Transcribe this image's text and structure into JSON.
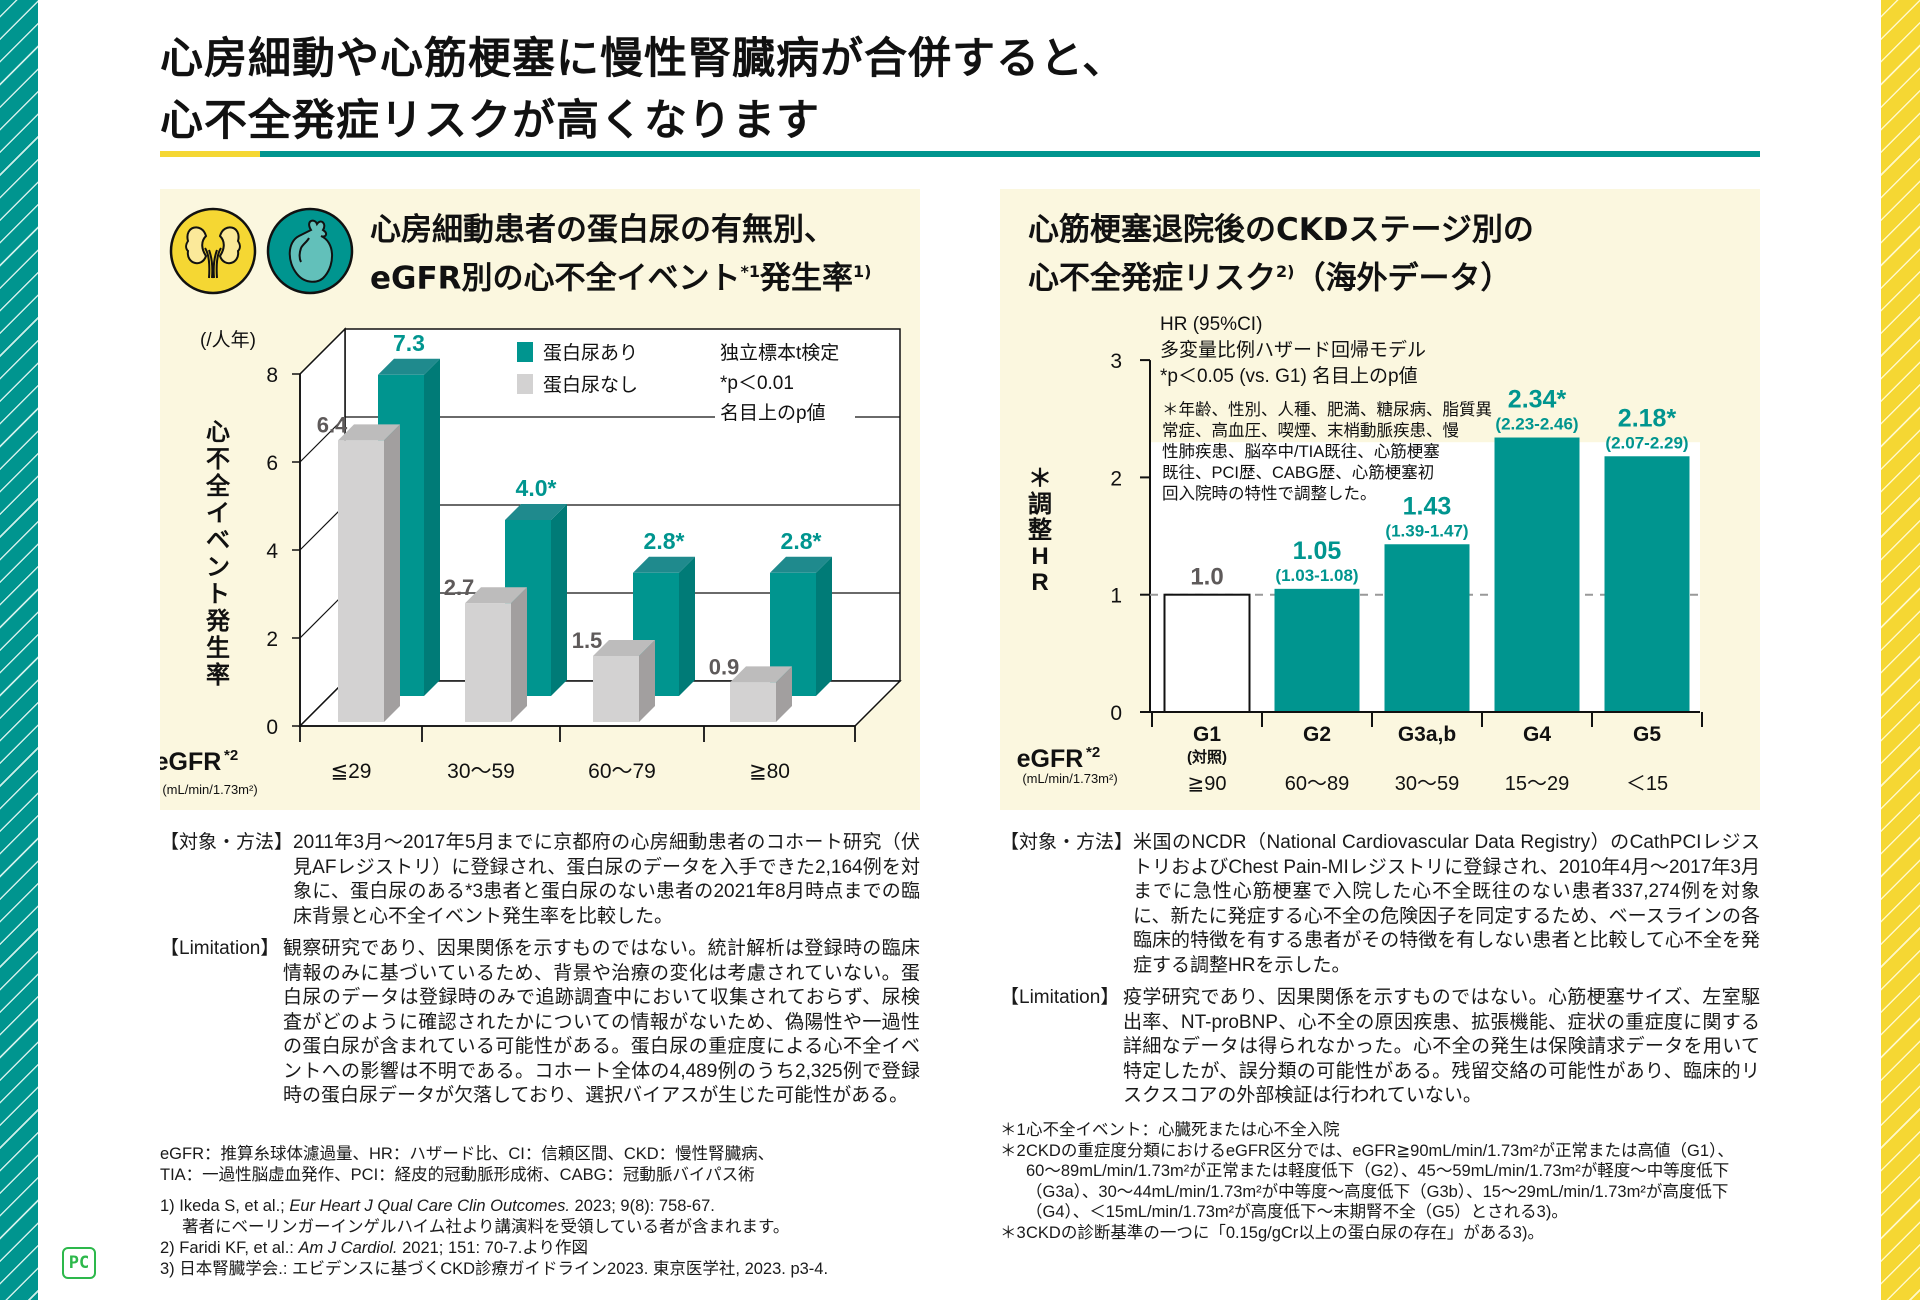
{
  "page": {
    "title_lines": [
      "心房細動や心筋梗塞に慢性腎臓病が合併すると、",
      "心不全発症リスクが高くなります"
    ],
    "colors": {
      "teal": "#00958f",
      "yellow": "#f5d733",
      "panel_bg": "#fbf7df",
      "gray_bar": "#d3d2d2",
      "gray_label": "#5e5a5a"
    }
  },
  "left_panel": {
    "icons": [
      "kidney-icon",
      "heart-icon"
    ],
    "heading_line1": "心房細動患者の蛋白尿の有無別、",
    "heading_line2_a": "eGFR別の心不全イベント",
    "heading_line2_sup1": "*1",
    "heading_line2_b": "発生率",
    "heading_line2_sup2": "1)",
    "unit_label": "(/人年)",
    "y_axis_title": "心不全イベント発生率",
    "x_axis_title": "eGFR",
    "x_axis_title_sup": "*2",
    "x_axis_unit": "(mL/min/1.73m²)",
    "legend": [
      {
        "label": "蛋白尿あり",
        "color": "#00958f"
      },
      {
        "label": "蛋白尿なし",
        "color": "#d3d2d2"
      }
    ],
    "test_note": [
      "独立標本t検定",
      "*p＜0.01",
      "名目上のp値"
    ]
  },
  "right_panel": {
    "heading_line1": "心筋梗塞退院後のCKDステージ別の",
    "heading_line2_a": "心不全発症リスク",
    "heading_line2_sup": "2)",
    "heading_line2_b": "（海外データ）",
    "model_notes": [
      "HR (95%CI)",
      "多変量比例ハザード回帰モデル",
      "*p＜0.05 (vs. G1) 名目上のp値"
    ],
    "adjust_note_lines": [
      "＊年齢、性別、人種、肥満、糖尿病、脂質異",
      "常症、高血圧、喫煙、末梢動脈疾患、慢",
      "性肺疾患、脳卒中/TIA既往、心筋梗塞",
      "既往、PCI歴、CABG歴、心筋梗塞初",
      "回入院時の特性で調整した。"
    ],
    "y_axis_title": [
      "＊",
      "調",
      "整",
      "H",
      "R"
    ],
    "x_axis_title": "eGFR",
    "x_axis_title_sup": "*2",
    "x_axis_unit": "(mL/min/1.73m²)",
    "control_label": "(対照)"
  },
  "chart_data": [
    {
      "type": "bar",
      "style": "3d-grouped",
      "title": "心房細動患者の蛋白尿の有無別、eGFR別の心不全イベント発生率",
      "xlabel": "eGFR (mL/min/1.73m²)",
      "ylabel": "心不全イベント発生率 (/人年)",
      "categories": [
        "≦29",
        "30〜59",
        "60〜79",
        "≧80"
      ],
      "series": [
        {
          "name": "蛋白尿なし",
          "values": [
            6.4,
            2.7,
            1.5,
            0.9
          ],
          "labels": [
            "6.4",
            "2.7",
            "1.5",
            "0.9"
          ],
          "color": "#d3d2d2"
        },
        {
          "name": "蛋白尿あり",
          "values": [
            7.3,
            4.0,
            2.8,
            2.8
          ],
          "labels": [
            "7.3",
            "4.0*",
            "2.8*",
            "2.8*"
          ],
          "color": "#00958f"
        }
      ],
      "yticks": [
        0,
        2,
        4,
        6,
        8
      ],
      "ylim": [
        0,
        8
      ],
      "grid": true,
      "legend": "top-right"
    },
    {
      "type": "bar",
      "title": "心筋梗塞退院後のCKDステージ別の心不全発症リスク（海外データ）",
      "xlabel": "eGFR (mL/min/1.73m²)",
      "ylabel": "＊調整HR",
      "categories": [
        "G1",
        "G2",
        "G3a,b",
        "G4",
        "G5"
      ],
      "egfr_ranges": [
        "≧90",
        "60〜89",
        "30〜59",
        "15〜29",
        "＜15"
      ],
      "values": [
        1.0,
        1.05,
        1.43,
        2.34,
        2.18
      ],
      "value_labels": [
        "1.0",
        "1.05",
        "1.43",
        "2.34*",
        "2.18*"
      ],
      "ci_labels": [
        "",
        "(1.03-1.08)",
        "(1.39-1.47)",
        "(2.23-2.46)",
        "(2.07-2.29)"
      ],
      "reference_line": 1,
      "yticks": [
        0,
        1,
        2,
        3
      ],
      "ylim": [
        0,
        3
      ],
      "grid": false
    }
  ],
  "left_text": {
    "methods_label": "【対象・方法】",
    "methods_body": "2011年3月〜2017年5月までに京都府の心房細動患者のコホート研究（伏見AFレジストリ）に登録され、蛋白尿のデータを入手できた2,164例を対象に、蛋白尿のある*3患者と蛋白尿のない患者の2021年8月時点までの臨床背景と心不全イベント発生率を比較した。",
    "limitation_label": "【Limitation】",
    "limitation_body": "観察研究であり、因果関係を示すものではない。統計解析は登録時の臨床情報のみに基づいているため、背景や治療の変化は考慮されていない。蛋白尿のデータは登録時のみで追跡調査中において収集されておらず、尿検査がどのように確認されたかについての情報がないため、偽陽性や一過性の蛋白尿が含まれている可能性がある。蛋白尿の重症度による心不全イベントへの影響は不明である。コホート全体の4,489例のうち2,325例で登録時の蛋白尿データが欠落しており、選択バイアスが生じた可能性がある。",
    "abbreviations": [
      "eGFR：推算糸球体濾過量、HR：ハザード比、CI：信頼区間、CKD：慢性腎臓病、",
      "TIA：一過性脳虚血発作、PCI：経皮的冠動脈形成術、CABG：冠動脈バイパス術"
    ],
    "references": [
      {
        "num": "1)",
        "pre": "Ikeda S, et al.; ",
        "journal": "Eur Heart J Qual Care Clin Outcomes.",
        "post": " 2023; 9(8): 758-67.",
        "note": "著者にベーリンガーインゲルハイム社より講演料を受領している者が含まれます。"
      },
      {
        "num": "2)",
        "pre": "Faridi KF, et al.: ",
        "journal": "Am J Cardiol.",
        "post": " 2021; 151: 70-7.より作図",
        "note": ""
      },
      {
        "num": "3)",
        "pre": "日本腎臓学会.: エビデンスに基づくCKD診療ガイドライン2023. 東京医学社, 2023. p3-4.",
        "journal": "",
        "post": "",
        "note": ""
      }
    ]
  },
  "right_text": {
    "methods_label": "【対象・方法】",
    "methods_body": "米国のNCDR（National Cardiovascular Data Registry）のCathPCIレジストリおよびChest Pain-MIレジストリに登録され、2010年4月〜2017年3月までに急性心筋梗塞で入院した心不全既往のない患者337,274例を対象に、新たに発症する心不全の危険因子を同定するため、ベースラインの各臨床的特徴を有する患者がその特徴を有しない患者と比較して心不全を発症する調整HRを示した。",
    "limitation_label": "【Limitation】",
    "limitation_body": "疫学研究であり、因果関係を示すものではない。心筋梗塞サイズ、左室駆出率、NT-proBNP、心不全の原因疾患、拡張機能、症状の重症度に関する詳細なデータは得られなかった。心不全の発生は保険請求データを用いて特定したが、誤分類の可能性がある。残留交絡の可能性があり、臨床的リスクスコアの外部検証は行われていない。",
    "footnotes": [
      {
        "mark": "＊1",
        "text": "心不全イベント：心臓死または心不全入院"
      },
      {
        "mark": "＊2",
        "text": "CKDの重症度分類におけるeGFR区分では、eGFR≧90mL/min/1.73m²が正常または高値（G1）、60〜89mL/min/1.73m²が正常または軽度低下（G2）、45〜59mL/min/1.73m²が軽度〜中等度低下（G3a）、30〜44mL/min/1.73m²が中等度〜高度低下（G3b）、15〜29mL/min/1.73m²が高度低下（G4）、＜15mL/min/1.73m²が高度低下〜末期腎不全（G5）とされる3)。"
      },
      {
        "mark": "＊3",
        "text": "CKDの診断基準の一つに「0.15g/gCr以上の蛋白尿の存在」がある3)。"
      }
    ]
  },
  "logo": {
    "text": "PC"
  }
}
